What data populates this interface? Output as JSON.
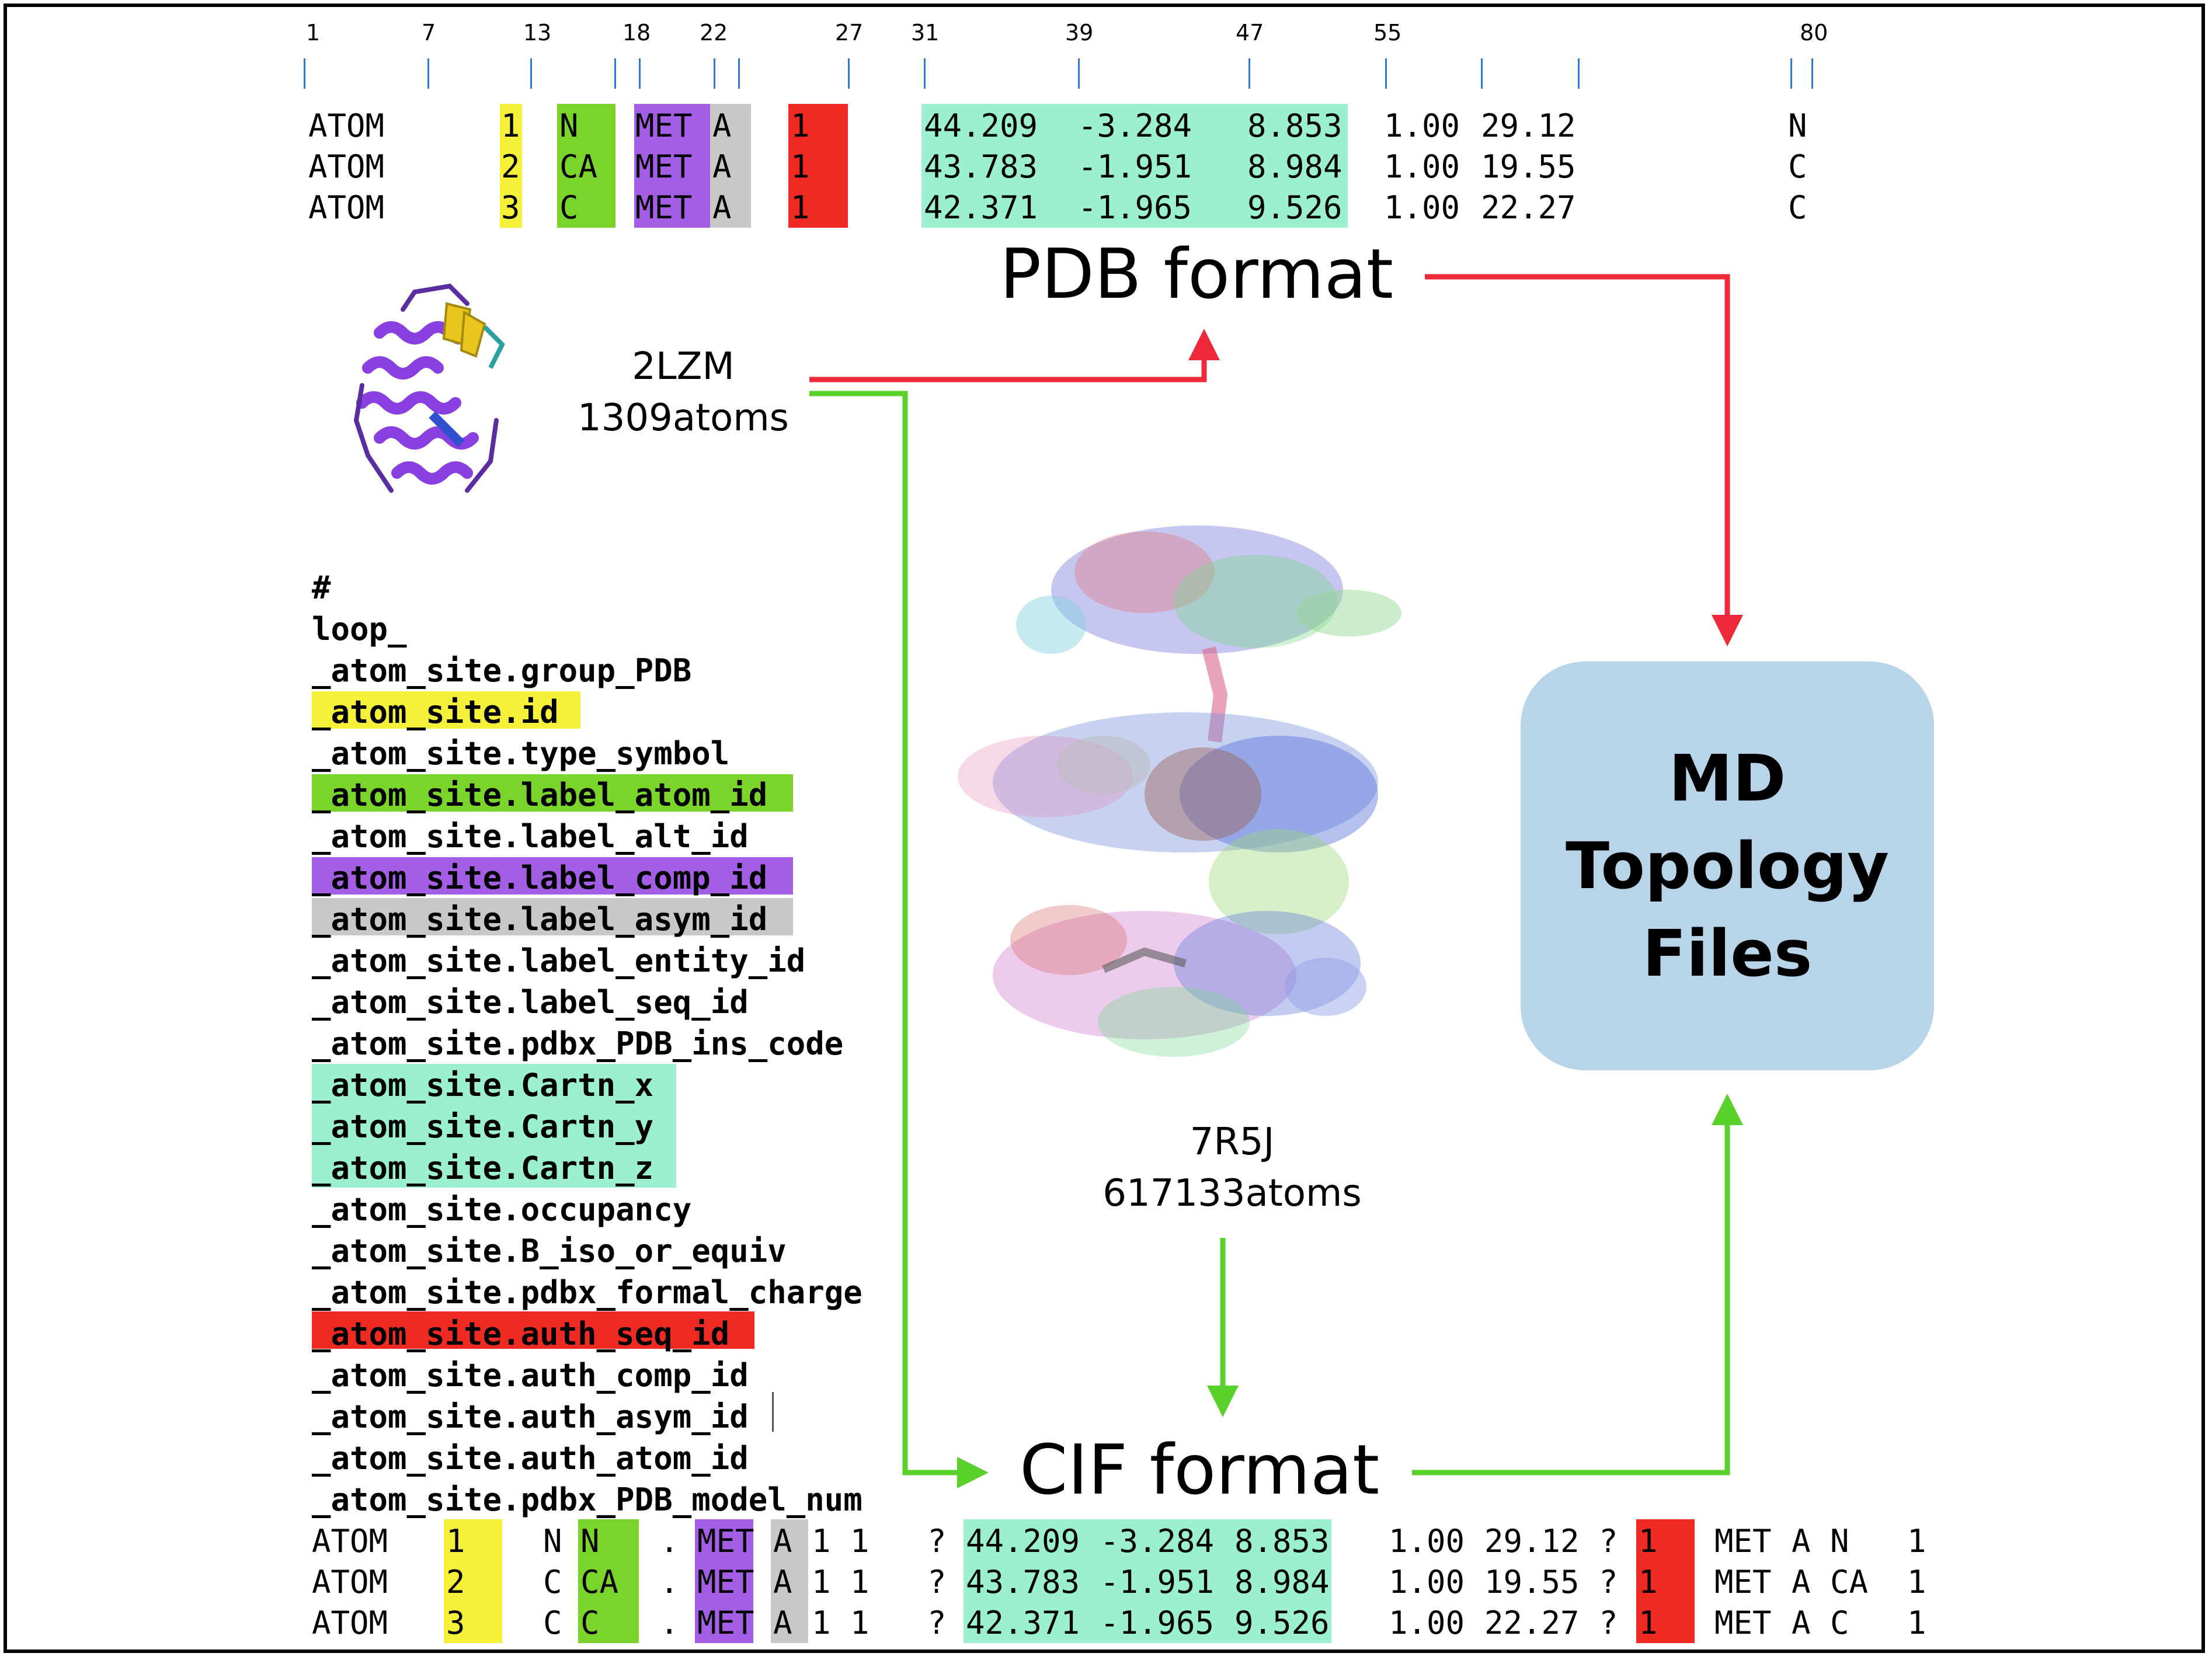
{
  "ruler": [
    "1",
    "7",
    "13",
    "18",
    "22",
    "27",
    "31",
    "39",
    "47",
    "55",
    "80"
  ],
  "pdb_rows": [
    {
      "rec": "ATOM",
      "id": "1",
      "atom": "N",
      "res": "MET",
      "chain": "A",
      "seq": "1",
      "x": "44.209",
      "y": "-3.284",
      "z": "8.853",
      "occ": "1.00",
      "b": "29.12",
      "el": "N"
    },
    {
      "rec": "ATOM",
      "id": "2",
      "atom": "CA",
      "res": "MET",
      "chain": "A",
      "seq": "1",
      "x": "43.783",
      "y": "-1.951",
      "z": "8.984",
      "occ": "1.00",
      "b": "19.55",
      "el": "C"
    },
    {
      "rec": "ATOM",
      "id": "3",
      "atom": "C",
      "res": "MET",
      "chain": "A",
      "seq": "1",
      "x": "42.371",
      "y": "-1.965",
      "z": "9.526",
      "occ": "1.00",
      "b": "22.27",
      "el": "C"
    }
  ],
  "labels": {
    "pdb_format": "PDB format",
    "cif_format": "CIF format",
    "md_line1": "MD",
    "md_line2": "Topology",
    "md_line3": "Files",
    "small_id": "2LZM",
    "small_atoms": "1309atoms",
    "large_id": "7R5J",
    "large_atoms": "617133atoms"
  },
  "cif_header": [
    "#",
    "loop_",
    "_atom_site.group_PDB",
    "_atom_site.id",
    "_atom_site.type_symbol",
    "_atom_site.label_atom_id",
    "_atom_site.label_alt_id",
    "_atom_site.label_comp_id",
    "_atom_site.label_asym_id",
    "_atom_site.label_entity_id",
    "_atom_site.label_seq_id",
    "_atom_site.pdbx_PDB_ins_code",
    "_atom_site.Cartn_x",
    "_atom_site.Cartn_y",
    "_atom_site.Cartn_z",
    "_atom_site.occupancy",
    "_atom_site.B_iso_or_equiv",
    "_atom_site.pdbx_formal_charge",
    "_atom_site.auth_seq_id",
    "_atom_site.auth_comp_id",
    "_atom_site.auth_asym_id",
    "_atom_site.auth_atom_id",
    "_atom_site.pdbx_PDB_model_num"
  ],
  "cif_rows": [
    {
      "rec": "ATOM",
      "id": "1",
      "type": "N",
      "atom": "N",
      "alt": ".",
      "comp": "MET",
      "asym": "A",
      "ent": "1",
      "seq": "1",
      "ins": "?",
      "x": "44.209",
      "y": "-3.284",
      "z": "8.853",
      "occ": "1.00",
      "b": "29.12",
      "chg": "?",
      "aseq": "1",
      "acomp": "MET",
      "aasym": "A",
      "aatom": "N",
      "model": "1"
    },
    {
      "rec": "ATOM",
      "id": "2",
      "type": "C",
      "atom": "CA",
      "alt": ".",
      "comp": "MET",
      "asym": "A",
      "ent": "1",
      "seq": "1",
      "ins": "?",
      "x": "43.783",
      "y": "-1.951",
      "z": "8.984",
      "occ": "1.00",
      "b": "19.55",
      "chg": "?",
      "aseq": "1",
      "acomp": "MET",
      "aasym": "A",
      "aatom": "CA",
      "model": "1"
    },
    {
      "rec": "ATOM",
      "id": "3",
      "type": "C",
      "atom": "C",
      "alt": ".",
      "comp": "MET",
      "asym": "A",
      "ent": "1",
      "seq": "1",
      "ins": "?",
      "x": "42.371",
      "y": "-1.965",
      "z": "9.526",
      "occ": "1.00",
      "b": "22.27",
      "chg": "?",
      "aseq": "1",
      "acomp": "MET",
      "aasym": "A",
      "aatom": "C",
      "model": "1"
    }
  ],
  "colors": {
    "id": "#f5f03a",
    "atom": "#7ad42a",
    "residue": "#a45ee6",
    "chain": "#c8c8c8",
    "seq": "#ee2a22",
    "coords": "#9af0cf",
    "pdb_arrow": "#ee2a3a",
    "cif_arrow": "#5ad12a",
    "md_box": "#b8d4e8"
  }
}
